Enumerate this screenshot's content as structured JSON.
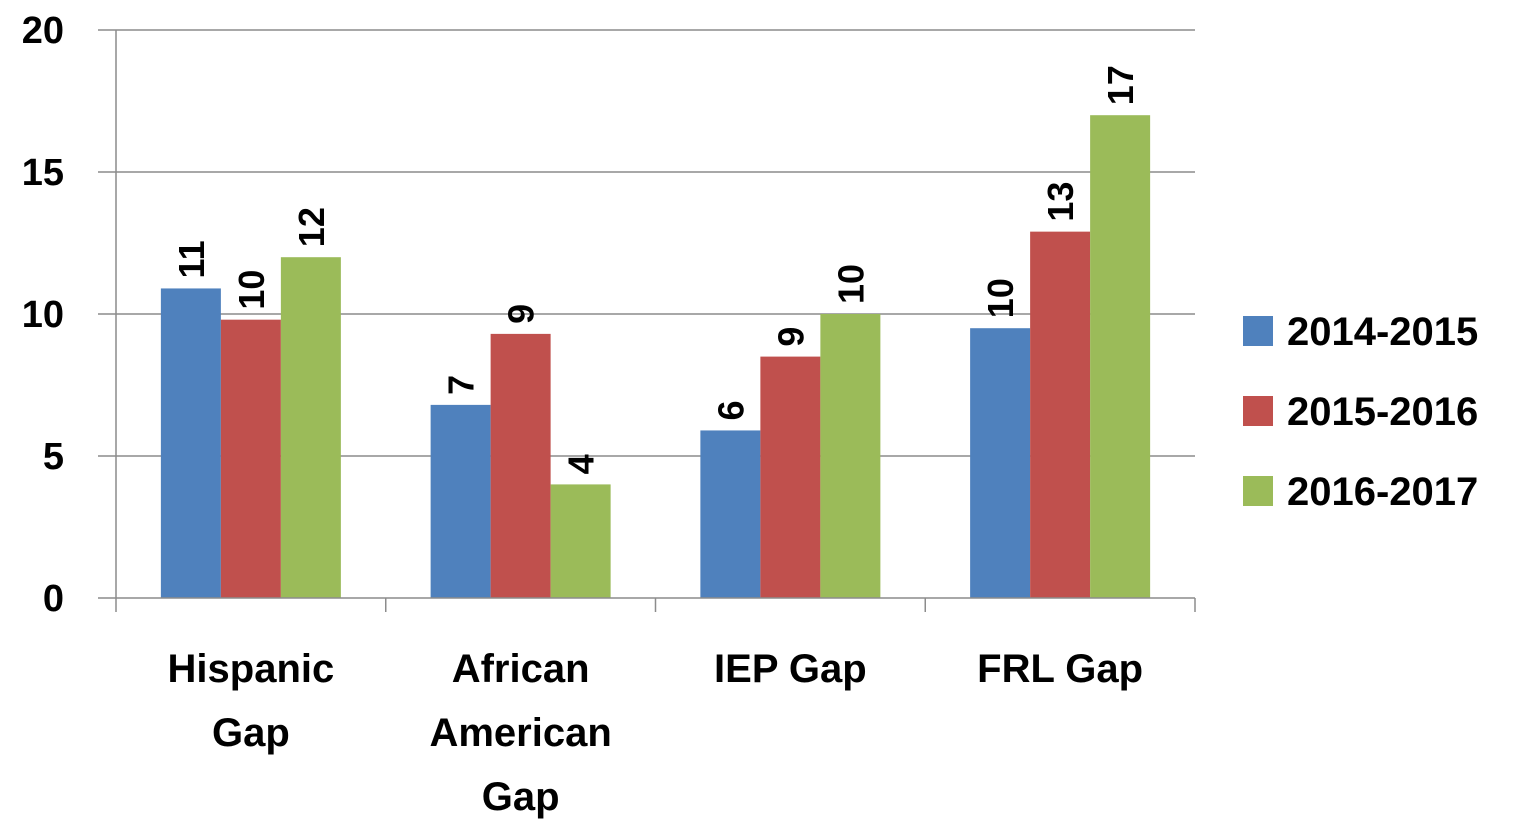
{
  "chart_data": {
    "type": "bar",
    "categories": [
      [
        "Hispanic",
        "Gap"
      ],
      [
        "African",
        "American",
        "Gap"
      ],
      [
        "IEP Gap"
      ],
      [
        "FRL Gap"
      ]
    ],
    "series": [
      {
        "name": "2014-2015",
        "color": "#4f81bd",
        "values": [
          10.9,
          6.8,
          5.9,
          9.5
        ],
        "labels": [
          "11",
          "7",
          "6",
          "10"
        ]
      },
      {
        "name": "2015-2016",
        "color": "#c0504d",
        "values": [
          9.8,
          9.3,
          8.5,
          12.9
        ],
        "labels": [
          "10",
          "9",
          "9",
          "13"
        ]
      },
      {
        "name": "2016-2017",
        "color": "#9bbb59",
        "values": [
          12.0,
          4.0,
          10.0,
          17.0
        ],
        "labels": [
          "12",
          "4",
          "10",
          "17"
        ]
      }
    ],
    "y_ticks": [
      "0",
      "5",
      "10",
      "15",
      "20"
    ],
    "ylim": [
      0,
      20
    ],
    "grid": true,
    "legend_position": "right"
  }
}
